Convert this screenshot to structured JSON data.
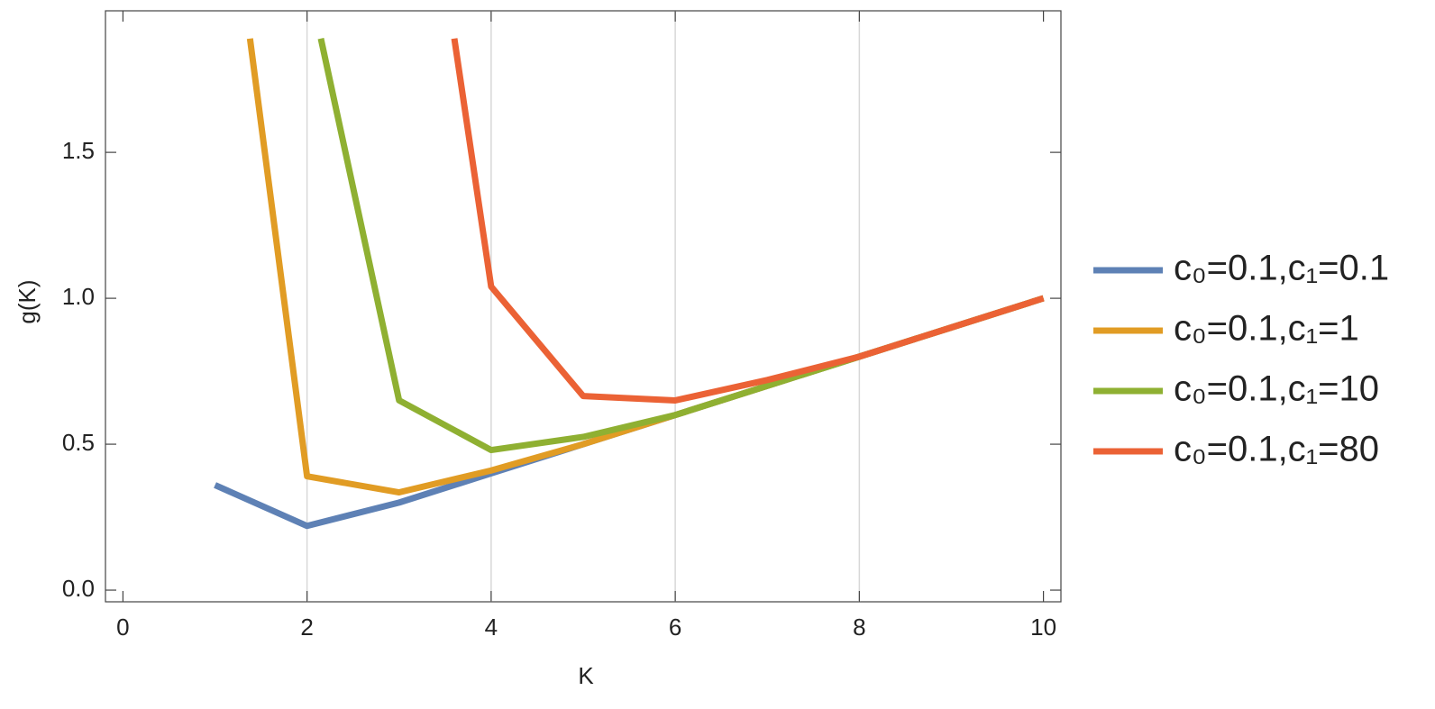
{
  "chart_data": {
    "type": "line",
    "x_label": "K",
    "y_label": "g(K)",
    "xlim": [
      -0.19,
      10.19
    ],
    "ylim": [
      -0.04,
      1.985
    ],
    "xticks": [
      0,
      2,
      4,
      6,
      8,
      10
    ],
    "yticks": [
      {
        "value": 0,
        "label": "0.0"
      },
      {
        "value": 0.5,
        "label": "0.5"
      },
      {
        "value": 1,
        "label": "1.0"
      },
      {
        "value": 1.5,
        "label": "1.5"
      }
    ],
    "grid": true,
    "legend": "right",
    "series": [
      {
        "name": "c₀=0.1,c₁=0.1",
        "color": "#5e81b5",
        "x": [
          1,
          2,
          3,
          4,
          5,
          6,
          7,
          8,
          9,
          10
        ],
        "values": [
          0.36,
          0.22,
          0.3,
          0.4,
          0.5,
          0.6,
          0.7,
          0.8,
          0.9,
          1.0
        ]
      },
      {
        "name": "c₀=0.1,c₁=1",
        "color": "#e19c24",
        "x": [
          1.38,
          2,
          3,
          4,
          5,
          6,
          7,
          8,
          9,
          10
        ],
        "values": [
          1.89,
          0.39,
          0.335,
          0.41,
          0.5,
          0.6,
          0.7,
          0.8,
          0.9,
          1.0
        ]
      },
      {
        "name": "c₀=0.1,c₁=10",
        "color": "#8fb032",
        "x": [
          2.15,
          3,
          4,
          5,
          6,
          7,
          8,
          9,
          10
        ],
        "values": [
          1.89,
          0.65,
          0.48,
          0.525,
          0.6,
          0.7,
          0.8,
          0.9,
          1.0
        ]
      },
      {
        "name": "c₀=0.1,c₁=80",
        "color": "#eb6235",
        "x": [
          3.6,
          4,
          5,
          6,
          7,
          8,
          9,
          10
        ],
        "values": [
          1.89,
          1.04,
          0.665,
          0.65,
          0.72,
          0.8,
          0.9,
          1.0
        ]
      }
    ]
  }
}
